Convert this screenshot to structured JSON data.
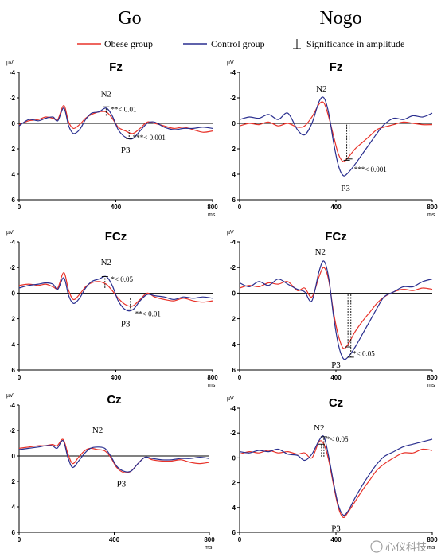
{
  "column_headers": [
    "Go",
    "Nogo"
  ],
  "legend": {
    "obese": "Obese group",
    "control": "Control group",
    "significance": "Significance in amplitude"
  },
  "colors": {
    "obese": "#e8332a",
    "control": "#2a2f8f"
  },
  "watermark": "心仪科技",
  "chart_data": [
    {
      "type": "line",
      "title": "Fz",
      "condition": "Go",
      "y_unit": "µV",
      "x_unit": "ms",
      "xlim": [
        0,
        800
      ],
      "ylim": [
        -4,
        6
      ],
      "y_inverted": true,
      "x_ticks": [
        "0",
        "400",
        "800"
      ],
      "y_ticks": [
        "-4",
        "-2",
        "0",
        "2",
        "4",
        "6"
      ],
      "series": [
        {
          "name": "Obese group",
          "x": [
            0,
            40,
            80,
            110,
            140,
            160,
            185,
            205,
            225,
            250,
            275,
            300,
            330,
            360,
            385,
            410,
            440,
            470,
            500,
            530,
            560,
            600,
            640,
            680,
            720,
            760,
            800
          ],
          "y": [
            0.1,
            -0.2,
            -0.3,
            -0.5,
            -0.4,
            -0.3,
            -1.4,
            -0.1,
            0.4,
            0.1,
            -0.4,
            -0.7,
            -0.9,
            -0.9,
            -0.4,
            0.3,
            0.6,
            0.8,
            0.4,
            -0.1,
            0.0,
            0.2,
            0.4,
            0.3,
            0.5,
            0.7,
            0.6
          ]
        },
        {
          "name": "Control group",
          "x": [
            0,
            40,
            80,
            110,
            140,
            160,
            185,
            205,
            225,
            250,
            275,
            300,
            330,
            360,
            385,
            410,
            440,
            470,
            500,
            530,
            560,
            600,
            640,
            680,
            720,
            760,
            800
          ],
          "y": [
            0.2,
            -0.3,
            -0.2,
            -0.4,
            -0.5,
            -0.2,
            -1.2,
            0.2,
            0.8,
            0.5,
            -0.3,
            -0.8,
            -0.9,
            -1.2,
            -0.6,
            0.5,
            1.1,
            1.2,
            0.6,
            0.0,
            -0.1,
            0.3,
            0.5,
            0.4,
            0.4,
            0.3,
            0.4
          ]
        }
      ],
      "annotations": [
        {
          "text": "N2",
          "x": 360,
          "y": -2.1
        },
        {
          "text": "**< 0.01",
          "x": 380,
          "y": -0.9
        },
        {
          "text": "***< 0.001",
          "x": 470,
          "y": 1.3
        },
        {
          "text": "P3",
          "x": 440,
          "y": 2.3
        }
      ],
      "significance_markers": [
        {
          "x": 360,
          "y1": -0.6,
          "y2": -1.3
        },
        {
          "x": 455,
          "y1": 0.5,
          "y2": 1.2
        }
      ]
    },
    {
      "type": "line",
      "title": "Fz",
      "condition": "Nogo",
      "y_unit": "µV",
      "x_unit": "ms",
      "xlim": [
        0,
        800
      ],
      "ylim": [
        -4,
        6
      ],
      "y_inverted": true,
      "x_ticks": [
        "0",
        "400",
        "800"
      ],
      "y_ticks": [
        "-4",
        "-2",
        "0",
        "2",
        "4",
        "6"
      ],
      "series": [
        {
          "name": "Obese group",
          "x": [
            0,
            40,
            80,
            120,
            160,
            200,
            240,
            270,
            300,
            330,
            350,
            370,
            390,
            410,
            430,
            450,
            480,
            510,
            540,
            570,
            600,
            640,
            680,
            720,
            760,
            800
          ],
          "y": [
            0.2,
            0.0,
            0.1,
            -0.1,
            0.2,
            0.0,
            0.3,
            0.2,
            -0.5,
            -1.5,
            -1.6,
            -0.5,
            1.0,
            2.4,
            3.0,
            2.7,
            2.0,
            1.5,
            1.0,
            0.5,
            0.3,
            0.1,
            -0.1,
            0.0,
            0.1,
            0.1
          ]
        },
        {
          "name": "Control group",
          "x": [
            0,
            40,
            80,
            120,
            160,
            200,
            240,
            270,
            300,
            330,
            350,
            370,
            390,
            410,
            430,
            450,
            480,
            510,
            540,
            570,
            600,
            640,
            680,
            720,
            760,
            800
          ],
          "y": [
            -0.3,
            -0.5,
            -0.4,
            -0.7,
            -0.3,
            -0.8,
            0.5,
            0.9,
            0.0,
            -1.7,
            -2.0,
            -0.8,
            1.5,
            3.3,
            4.1,
            3.9,
            3.2,
            2.4,
            1.6,
            0.8,
            0.1,
            -0.4,
            -0.3,
            -0.6,
            -0.5,
            -0.8
          ]
        }
      ],
      "annotations": [
        {
          "text": "N2",
          "x": 340,
          "y": -2.5
        },
        {
          "text": "***< 0.001",
          "x": 475,
          "y": 3.8
        },
        {
          "text": "P3",
          "x": 440,
          "y": 5.3
        }
      ],
      "significance_markers": [
        {
          "x": 445,
          "y1": 0.1,
          "y2": 2.9
        },
        {
          "x": 455,
          "y1": 0.1,
          "y2": 2.8
        }
      ]
    },
    {
      "type": "line",
      "title": "FCz",
      "condition": "Go",
      "y_unit": "µV",
      "x_unit": "ms",
      "xlim": [
        0,
        800
      ],
      "ylim": [
        -4,
        6
      ],
      "y_inverted": true,
      "x_ticks": [
        "0",
        "400",
        "800"
      ],
      "y_ticks": [
        "-4",
        "-2",
        "0",
        "2",
        "4",
        "6"
      ],
      "series": [
        {
          "name": "Obese group",
          "x": [
            0,
            40,
            80,
            110,
            140,
            160,
            185,
            205,
            225,
            250,
            275,
            300,
            330,
            360,
            385,
            410,
            440,
            470,
            500,
            530,
            560,
            600,
            640,
            680,
            720,
            760,
            800
          ],
          "y": [
            -0.6,
            -0.7,
            -0.6,
            -0.7,
            -0.5,
            -0.4,
            -1.6,
            -0.2,
            0.5,
            0.1,
            -0.5,
            -0.8,
            -0.9,
            -0.7,
            -0.2,
            0.4,
            0.9,
            1.0,
            0.5,
            0.0,
            0.3,
            0.5,
            0.6,
            0.4,
            0.6,
            0.7,
            0.6
          ]
        },
        {
          "name": "Control group",
          "x": [
            0,
            40,
            80,
            110,
            140,
            160,
            185,
            205,
            225,
            250,
            275,
            300,
            330,
            360,
            385,
            410,
            440,
            470,
            500,
            530,
            560,
            600,
            640,
            680,
            720,
            760,
            800
          ],
          "y": [
            -0.4,
            -0.6,
            -0.7,
            -0.8,
            -0.7,
            -0.3,
            -1.2,
            0.2,
            0.8,
            0.4,
            -0.4,
            -0.9,
            -1.1,
            -1.3,
            -0.6,
            0.6,
            1.3,
            1.3,
            0.6,
            0.1,
            0.2,
            0.3,
            0.5,
            0.3,
            0.4,
            0.3,
            0.4
          ]
        }
      ],
      "annotations": [
        {
          "text": "N2",
          "x": 360,
          "y": -2.2
        },
        {
          "text": "*< 0.05",
          "x": 380,
          "y": -0.9
        },
        {
          "text": "**< 0.01",
          "x": 480,
          "y": 1.8
        },
        {
          "text": "P3",
          "x": 440,
          "y": 2.6
        }
      ],
      "significance_markers": [
        {
          "x": 355,
          "y1": -0.4,
          "y2": -1.3
        },
        {
          "x": 460,
          "y1": 0.4,
          "y2": 1.3
        }
      ]
    },
    {
      "type": "line",
      "title": "FCz",
      "condition": "Nogo",
      "y_unit": "µV",
      "x_unit": "ms",
      "xlim": [
        0,
        800
      ],
      "ylim": [
        -4,
        6
      ],
      "y_inverted": true,
      "x_ticks": [
        "0",
        "400",
        "800"
      ],
      "y_ticks": [
        "-4",
        "-2",
        "0",
        "2",
        "4",
        "6"
      ],
      "series": [
        {
          "name": "Obese group",
          "x": [
            0,
            40,
            80,
            120,
            160,
            200,
            240,
            270,
            300,
            330,
            350,
            370,
            390,
            410,
            430,
            450,
            480,
            510,
            540,
            570,
            600,
            640,
            680,
            720,
            760,
            800
          ],
          "y": [
            -0.4,
            -0.6,
            -0.5,
            -0.8,
            -0.7,
            -0.9,
            -0.2,
            -0.4,
            0.3,
            -1.3,
            -2.0,
            -1.0,
            1.5,
            3.3,
            4.3,
            4.0,
            3.0,
            2.2,
            1.5,
            0.8,
            0.3,
            -0.1,
            -0.3,
            -0.2,
            -0.4,
            -0.3
          ]
        },
        {
          "name": "Control group",
          "x": [
            0,
            40,
            80,
            120,
            160,
            200,
            240,
            270,
            300,
            330,
            350,
            370,
            390,
            410,
            430,
            450,
            480,
            510,
            540,
            570,
            600,
            640,
            680,
            720,
            760,
            800
          ],
          "y": [
            -0.8,
            -0.5,
            -0.9,
            -0.6,
            -1.1,
            -0.7,
            -0.3,
            -0.1,
            0.6,
            -1.7,
            -2.5,
            -1.2,
            1.8,
            4.0,
            5.1,
            5.0,
            4.2,
            3.2,
            2.2,
            1.2,
            0.3,
            -0.1,
            -0.5,
            -0.5,
            -0.9,
            -1.1
          ]
        }
      ],
      "annotations": [
        {
          "text": "N2",
          "x": 335,
          "y": -3.0
        },
        {
          "text": "*< 0.05",
          "x": 470,
          "y": 4.9
        },
        {
          "text": "P3",
          "x": 400,
          "y": 5.8
        }
      ],
      "significance_markers": [
        {
          "x": 450,
          "y1": 0.1,
          "y2": 4.2
        },
        {
          "x": 462,
          "y1": 0.1,
          "y2": 5.0
        }
      ]
    },
    {
      "type": "line",
      "title": "Cz",
      "condition": "Go",
      "y_unit": "µV",
      "x_unit": "ms",
      "xlim": [
        0,
        800
      ],
      "ylim": [
        -4,
        6
      ],
      "y_inverted": true,
      "x_ticks": [
        "0",
        "400",
        "800"
      ],
      "y_ticks": [
        "-4",
        "-2",
        "0",
        "2",
        "4",
        "6"
      ],
      "series": [
        {
          "name": "Obese group",
          "x": [
            0,
            40,
            80,
            110,
            140,
            160,
            185,
            205,
            225,
            250,
            275,
            300,
            330,
            360,
            385,
            410,
            440,
            470,
            500,
            530,
            560,
            600,
            640,
            680,
            720,
            760,
            800
          ],
          "y": [
            -0.6,
            -0.7,
            -0.8,
            -0.8,
            -0.9,
            -0.8,
            -1.3,
            -0.2,
            0.6,
            0.1,
            -0.4,
            -0.6,
            -0.5,
            -0.4,
            0.1,
            0.9,
            1.3,
            1.2,
            0.6,
            0.1,
            0.3,
            0.4,
            0.4,
            0.3,
            0.5,
            0.6,
            0.5
          ]
        },
        {
          "name": "Control group",
          "x": [
            0,
            40,
            80,
            110,
            140,
            160,
            185,
            205,
            225,
            250,
            275,
            300,
            330,
            360,
            385,
            410,
            440,
            470,
            500,
            530,
            560,
            600,
            640,
            680,
            720,
            760,
            800
          ],
          "y": [
            -0.5,
            -0.6,
            -0.7,
            -0.8,
            -0.8,
            -0.6,
            -1.2,
            0.1,
            0.9,
            0.4,
            -0.2,
            -0.6,
            -0.7,
            -0.6,
            0.0,
            0.8,
            1.2,
            1.2,
            0.6,
            0.1,
            0.2,
            0.3,
            0.3,
            0.2,
            0.2,
            0.1,
            0.2
          ]
        }
      ],
      "annotations": [
        {
          "text": "N2",
          "x": 330,
          "y": -1.8
        },
        {
          "text": "P3",
          "x": 430,
          "y": 2.4
        }
      ],
      "significance_markers": []
    },
    {
      "type": "line",
      "title": "Cz",
      "condition": "Nogo",
      "y_unit": "µV",
      "x_unit": "ms",
      "xlim": [
        0,
        800
      ],
      "ylim": [
        -4,
        6
      ],
      "y_inverted": true,
      "x_ticks": [
        "0",
        "400",
        "800"
      ],
      "y_ticks": [
        "-4",
        "-2",
        "0",
        "2",
        "4",
        "6"
      ],
      "series": [
        {
          "name": "Obese group",
          "x": [
            0,
            40,
            80,
            120,
            160,
            200,
            240,
            270,
            300,
            330,
            350,
            370,
            390,
            410,
            430,
            450,
            480,
            510,
            540,
            570,
            600,
            640,
            680,
            720,
            760,
            800
          ],
          "y": [
            -0.3,
            -0.5,
            -0.4,
            -0.6,
            -0.4,
            -0.5,
            -0.3,
            -0.4,
            0.0,
            -1.3,
            -1.1,
            0.2,
            2.2,
            4.0,
            4.8,
            4.4,
            3.5,
            2.6,
            1.8,
            1.0,
            0.5,
            0.0,
            -0.4,
            -0.4,
            -0.7,
            -0.6
          ]
        },
        {
          "name": "Control group",
          "x": [
            0,
            40,
            80,
            120,
            160,
            200,
            240,
            270,
            300,
            330,
            350,
            370,
            390,
            410,
            430,
            450,
            480,
            510,
            540,
            570,
            600,
            640,
            680,
            720,
            760,
            800
          ],
          "y": [
            -0.5,
            -0.4,
            -0.6,
            -0.5,
            -0.7,
            -0.3,
            -0.2,
            0.2,
            -0.3,
            -1.4,
            -1.7,
            -0.1,
            2.0,
            3.8,
            4.6,
            4.3,
            3.2,
            2.2,
            1.3,
            0.5,
            -0.1,
            -0.5,
            -0.9,
            -1.1,
            -1.3,
            -1.5
          ]
        }
      ],
      "annotations": [
        {
          "text": "N2",
          "x": 330,
          "y": -2.2
        },
        {
          "text": "*< 0.05",
          "x": 360,
          "y": -1.3
        },
        {
          "text": "P3",
          "x": 400,
          "y": 5.9
        }
      ],
      "significance_markers": [
        {
          "x": 340,
          "y1": -0.1,
          "y2": -1.1
        },
        {
          "x": 350,
          "y1": -0.1,
          "y2": -1.7
        }
      ]
    }
  ]
}
